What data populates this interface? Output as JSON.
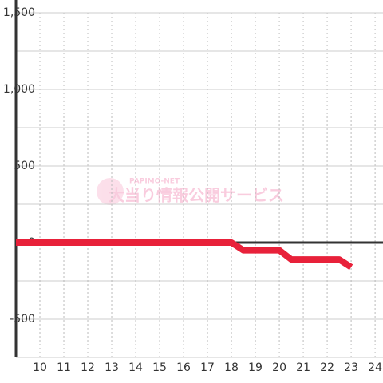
{
  "chart_data": {
    "type": "line",
    "x": [
      9,
      18,
      18.5,
      20,
      20.5,
      22.5,
      23
    ],
    "series": [
      {
        "color": "#e8213a",
        "values": [
          0,
          0,
          -50,
          -50,
          -110,
          -110,
          -160
        ]
      }
    ],
    "xlim": [
      9,
      24.33
    ],
    "xticks": [
      10,
      11,
      12,
      13,
      14,
      15,
      16,
      17,
      18,
      19,
      20,
      21,
      22,
      23,
      24
    ],
    "ylim": [
      -750,
      1500
    ],
    "yticks": [
      {
        "value": -500,
        "label": "-500"
      },
      0,
      500,
      {
        "value": 1000,
        "label": "1,000"
      },
      {
        "value": 1500,
        "label": "1,500"
      }
    ],
    "minor_yticks": [
      -750,
      -250,
      250,
      750,
      1250
    ],
    "grid": true,
    "watermark": {
      "brand": "PAPIMO-NET",
      "text": "大当り情報公開サービス"
    }
  }
}
